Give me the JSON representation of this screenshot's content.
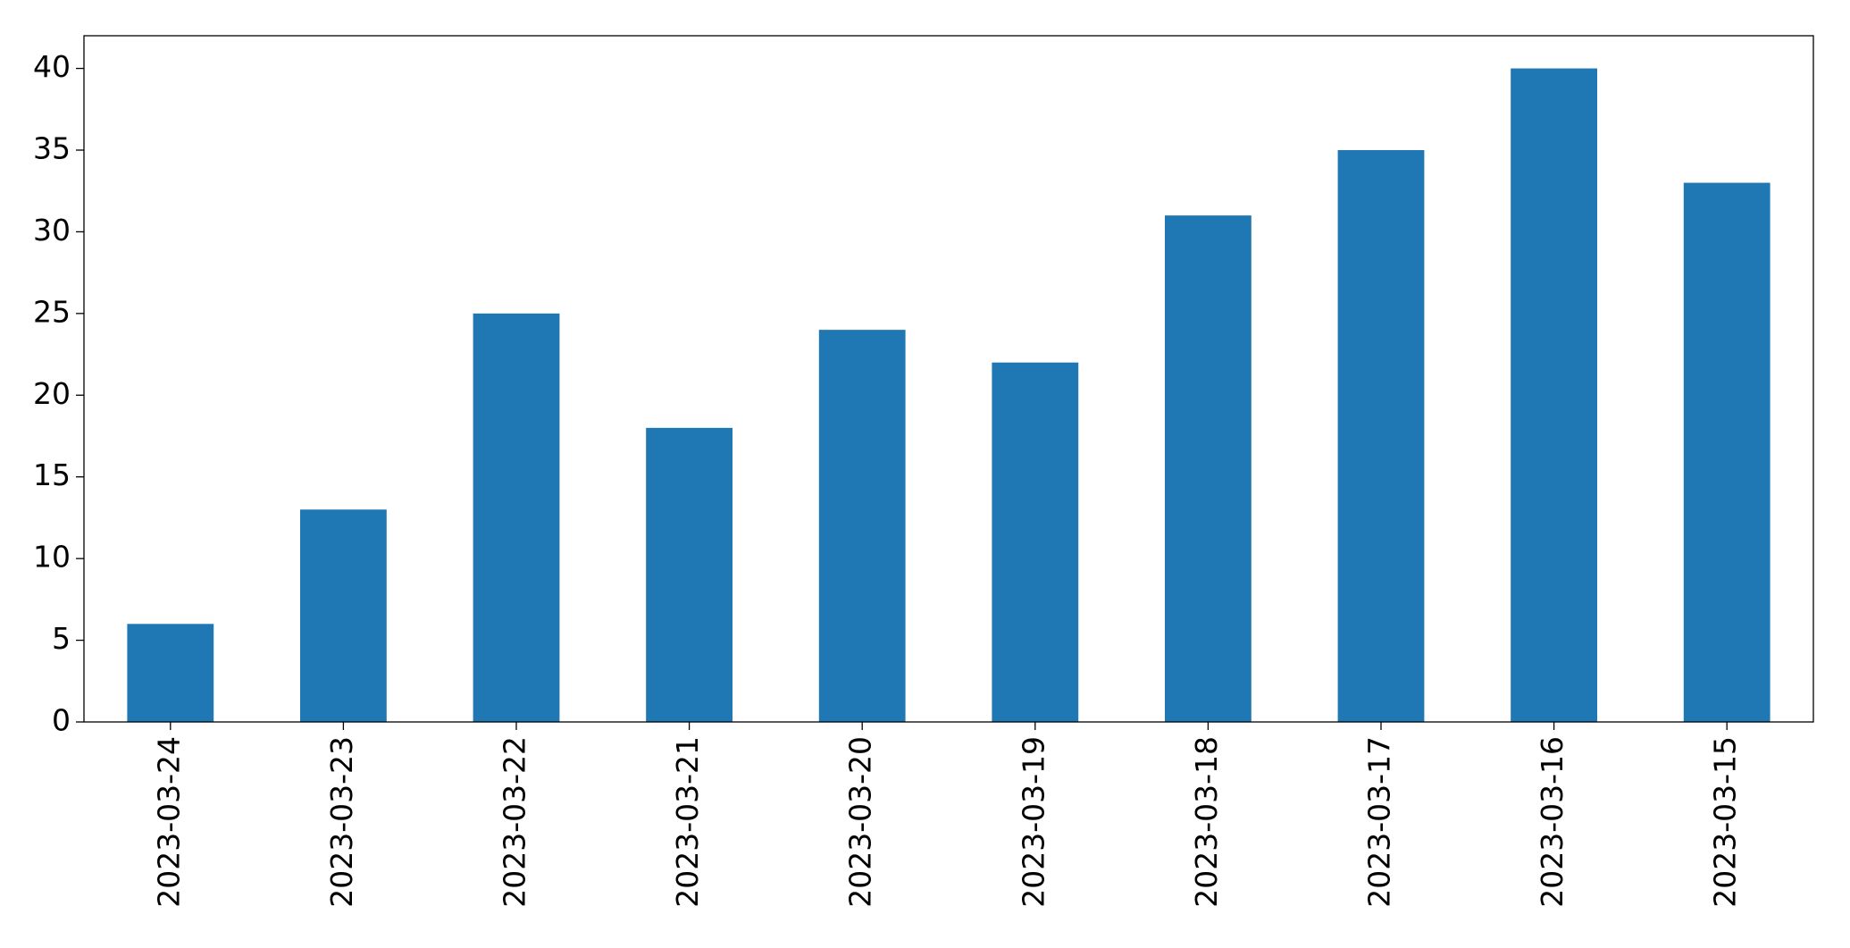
{
  "chart_data": {
    "type": "bar",
    "categories": [
      "2023-03-24",
      "2023-03-23",
      "2023-03-22",
      "2023-03-21",
      "2023-03-20",
      "2023-03-19",
      "2023-03-18",
      "2023-03-17",
      "2023-03-16",
      "2023-03-15"
    ],
    "values": [
      6,
      13,
      25,
      18,
      24,
      22,
      31,
      35,
      40,
      33
    ],
    "color": "#1f77b4",
    "ylim": [
      0,
      42
    ],
    "yticks": [
      0,
      5,
      10,
      15,
      20,
      25,
      30,
      35,
      40
    ],
    "grid": false
  }
}
